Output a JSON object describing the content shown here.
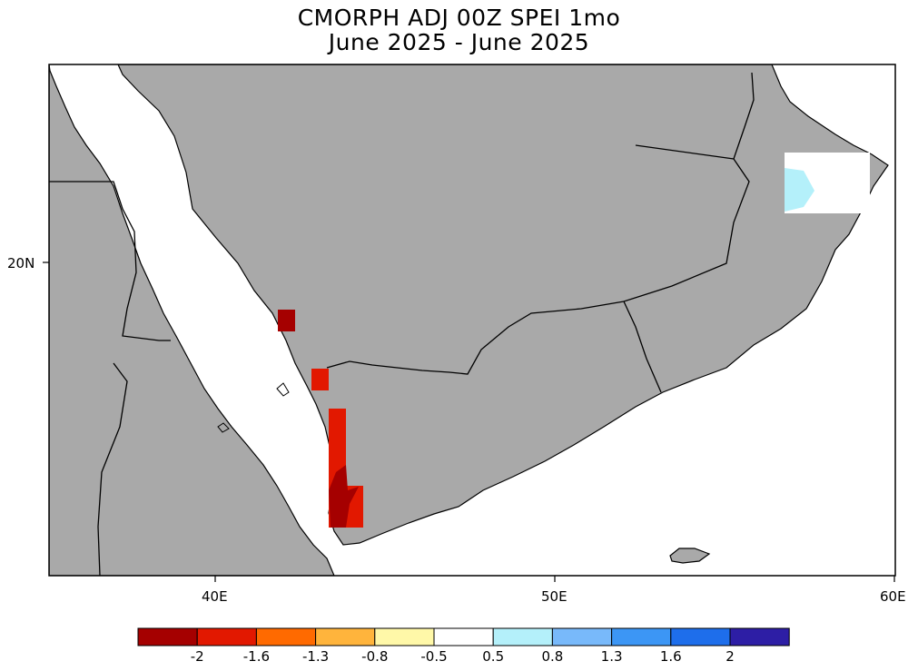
{
  "title": {
    "line1": "CMORPH ADJ 00Z SPEI 1mo",
    "line2": "June 2025 - June 2025"
  },
  "axes": {
    "x_ticks": [
      "40E",
      "50E",
      "60E"
    ],
    "y_ticks": [
      "20N"
    ]
  },
  "legend": {
    "colors": [
      "#a50000",
      "#e21800",
      "#ff6a00",
      "#ffb43c",
      "#fff8a8",
      "#ffffff",
      "#b4f0fa",
      "#78b9fa",
      "#3c96f5",
      "#1e6eeb",
      "#2d1ea5"
    ],
    "labels": [
      "-2",
      "-1.6",
      "-1.3",
      "-0.8",
      "-0.5",
      "0.5",
      "0.8",
      "1.3",
      "1.6",
      "2"
    ]
  },
  "colors": {
    "land": "#a9a9a9",
    "water": "#ffffff",
    "dry_extreme": "#a50000",
    "dry_severe": "#e21800",
    "wet_moderate": "#b4f0fa"
  }
}
